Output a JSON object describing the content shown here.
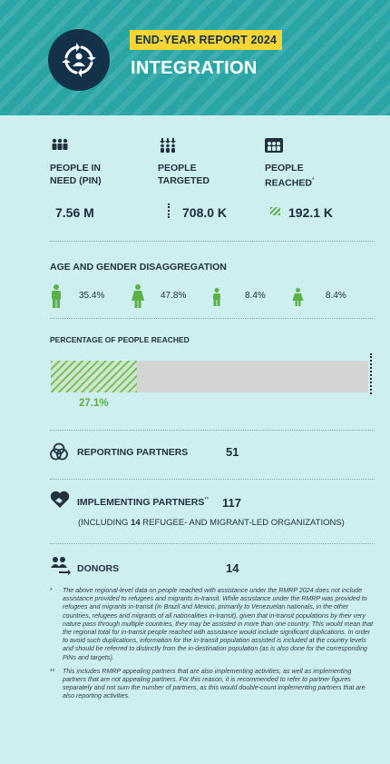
{
  "header": {
    "badge": "END-YEAR REPORT 2024",
    "title": "INTEGRATION",
    "icon": "integration-cycle-icon"
  },
  "stats": [
    {
      "label_line1": "PEOPLE IN",
      "label_line2": "NEED (PIN)",
      "value": "7.56 M",
      "icon": "people-group-icon"
    },
    {
      "label_line1": "PEOPLE",
      "label_line2": "TARGETED",
      "value": "708.0 K",
      "icon": "people-targeted-icon"
    },
    {
      "label_line1": "PEOPLE",
      "label_line2": "REACHED",
      "label_mark": "*",
      "value": "192.1 K",
      "icon": "people-reached-icon"
    }
  ],
  "age_gender": {
    "title": "AGE AND GENDER DISAGGREGATION",
    "items": [
      {
        "group": "adult-male",
        "value": "35.4%"
      },
      {
        "group": "adult-female",
        "value": "47.8%"
      },
      {
        "group": "child-male",
        "value": "8.4%"
      },
      {
        "group": "child-female",
        "value": "8.4%"
      }
    ]
  },
  "reached": {
    "title": "PERCENTAGE OF PEOPLE REACHED",
    "value": "27.1%",
    "fraction": 0.271
  },
  "partners": {
    "reporting_label": "REPORTING PARTNERS",
    "reporting_value": "51",
    "implementing_label": "IMPLEMENTING PARTNERS",
    "implementing_mark": "**",
    "implementing_value": "117",
    "including_prefix": "(INCLUDING ",
    "including_count": "14",
    "including_suffix": " REFUGEE- AND MIGRANT-LED ORGANIZATIONS)",
    "donors_label": "DONORS",
    "donors_value": "14"
  },
  "footnotes": [
    {
      "mark": "*",
      "text": "The above regional-level data on people reached with assistance under the RMRP 2024 does not include assistance provided to refugees and migrants in-transit. While assistance under the RMRP was provided to refugees and migrants in-transit (in Brazil and Mexico, primarily to Venezuelan nationals, in the other countries, refugees and migrants of all nationalities in-transit), given that in-transit populations by their very nature pass through multiple countries, they may be assisted in more than one country. This would mean that the regional total for in-transit people reached with assistance would include significant duplications. In order to avoid such duplications, information for the in-transit population assisted is included at the country levels and should be referred to distinctly from the in-destination population (as is also done for the corresponding PiNs and targets)."
    },
    {
      "mark": "**",
      "text": "This includes RMRP appealing partners that are also implementing activities, as well as implementing partners that are not appealing partners. For this reason, it is recommended to refer to partner figures separately and not sum the number of partners, as this would double-count implementing partners that are also reporting activities."
    }
  ],
  "colors": {
    "teal": "#2aa5a5",
    "navy": "#13324a",
    "yellow": "#f6d536",
    "green": "#5bb046",
    "bg": "#cdeff0"
  }
}
